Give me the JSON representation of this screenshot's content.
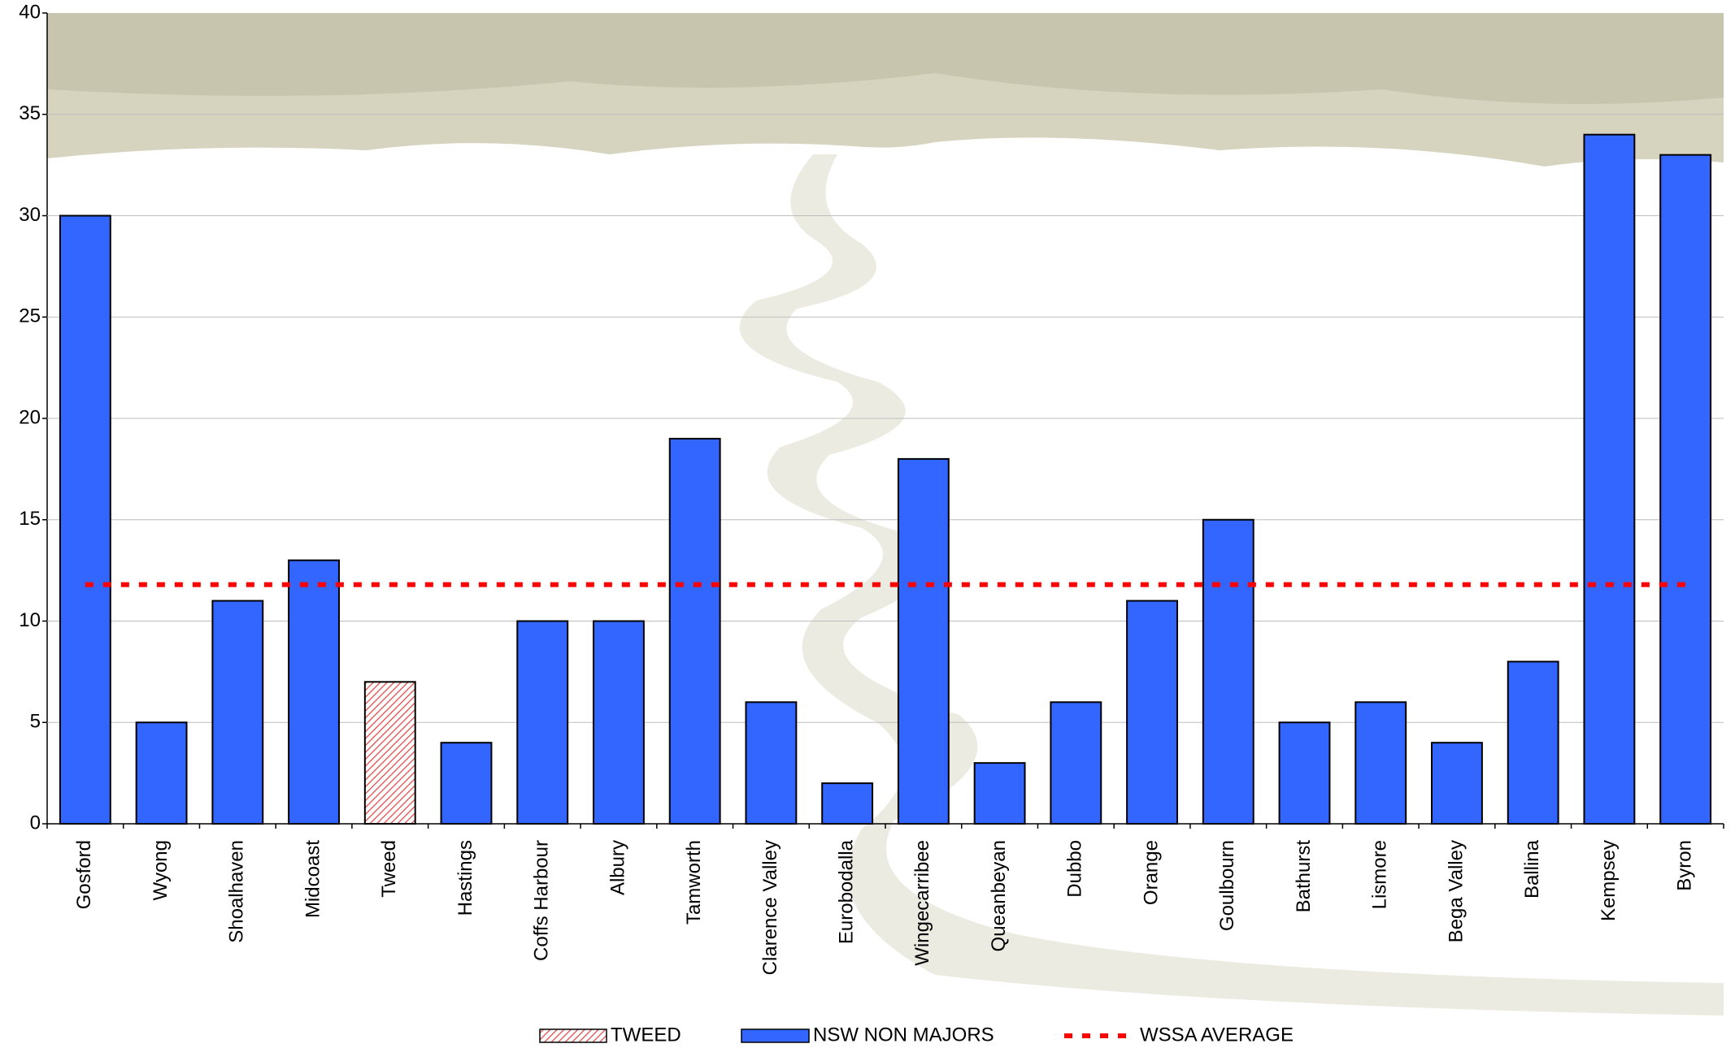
{
  "chart_data": {
    "type": "bar",
    "categories": [
      "Gosford",
      "Wyong",
      "Shoalhaven",
      "Midcoast",
      "Tweed",
      "Hastings",
      "Coffs Harbour",
      "Albury",
      "Tamworth",
      "Clarence Valley",
      "Eurobodalla",
      "Wingecarribee",
      "Queanbeyan",
      "Dubbo",
      "Orange",
      "Goulbourn",
      "Bathurst",
      "Lismore",
      "Bega Valley",
      "Ballina",
      "Kempsey",
      "Byron"
    ],
    "series": [
      {
        "name": "TWEED",
        "color": "#e04848",
        "hatch": true,
        "values": [
          null,
          null,
          null,
          null,
          7,
          null,
          null,
          null,
          null,
          null,
          null,
          null,
          null,
          null,
          null,
          null,
          null,
          null,
          null,
          null,
          null,
          null
        ]
      },
      {
        "name": "NSW NON MAJORS",
        "color": "#3366ff",
        "values": [
          30,
          5,
          11,
          13,
          null,
          4,
          10,
          10,
          19,
          6,
          2,
          18,
          3,
          6,
          11,
          15,
          5,
          6,
          4,
          8,
          34,
          33
        ]
      }
    ],
    "reference_line": {
      "name": "WSSA AVERAGE",
      "color": "#ff0000",
      "value": 11.8
    },
    "ylim": [
      0,
      40
    ],
    "yticks": [
      0,
      5,
      10,
      15,
      20,
      25,
      30,
      35,
      40
    ],
    "grid": true
  }
}
